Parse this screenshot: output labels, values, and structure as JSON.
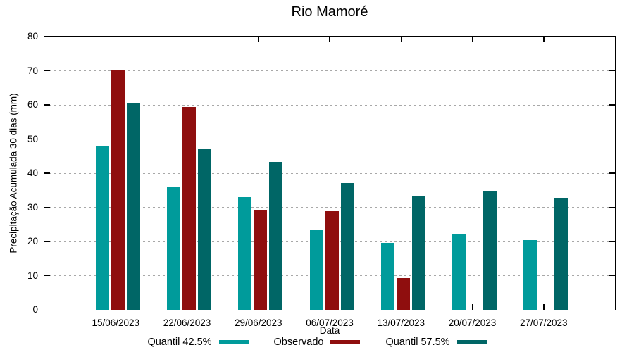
{
  "chart": {
    "background": "#ffffff",
    "axis_color": "#000000",
    "grid_color": "#a8a8a8"
  },
  "chart_data": {
    "type": "bar",
    "title": "Rio Mamoré",
    "xlabel": "Data",
    "ylabel": "Precipitação Acumulada 30 dias (mm)",
    "ylim": [
      0,
      80
    ],
    "ytick_step": 10,
    "grid": "horizontal-dotted",
    "legend_position": "bottom",
    "categories": [
      "15/06/2023",
      "22/06/2023",
      "29/06/2023",
      "06/07/2023",
      "13/07/2023",
      "20/07/2023",
      "27/07/2023"
    ],
    "series": [
      {
        "name": "Quantil 42.5%",
        "color": "#009B9B",
        "values": [
          47.9,
          36.1,
          33.0,
          23.4,
          19.5,
          22.2,
          20.4
        ]
      },
      {
        "name": "Observado",
        "color": "#8F0E0E",
        "values": [
          70.1,
          59.3,
          29.3,
          28.9,
          9.2,
          null,
          null
        ]
      },
      {
        "name": "Quantil 57.5%",
        "color": "#006666",
        "values": [
          60.4,
          47.1,
          43.2,
          37.1,
          33.3,
          34.6,
          32.8
        ]
      }
    ]
  }
}
